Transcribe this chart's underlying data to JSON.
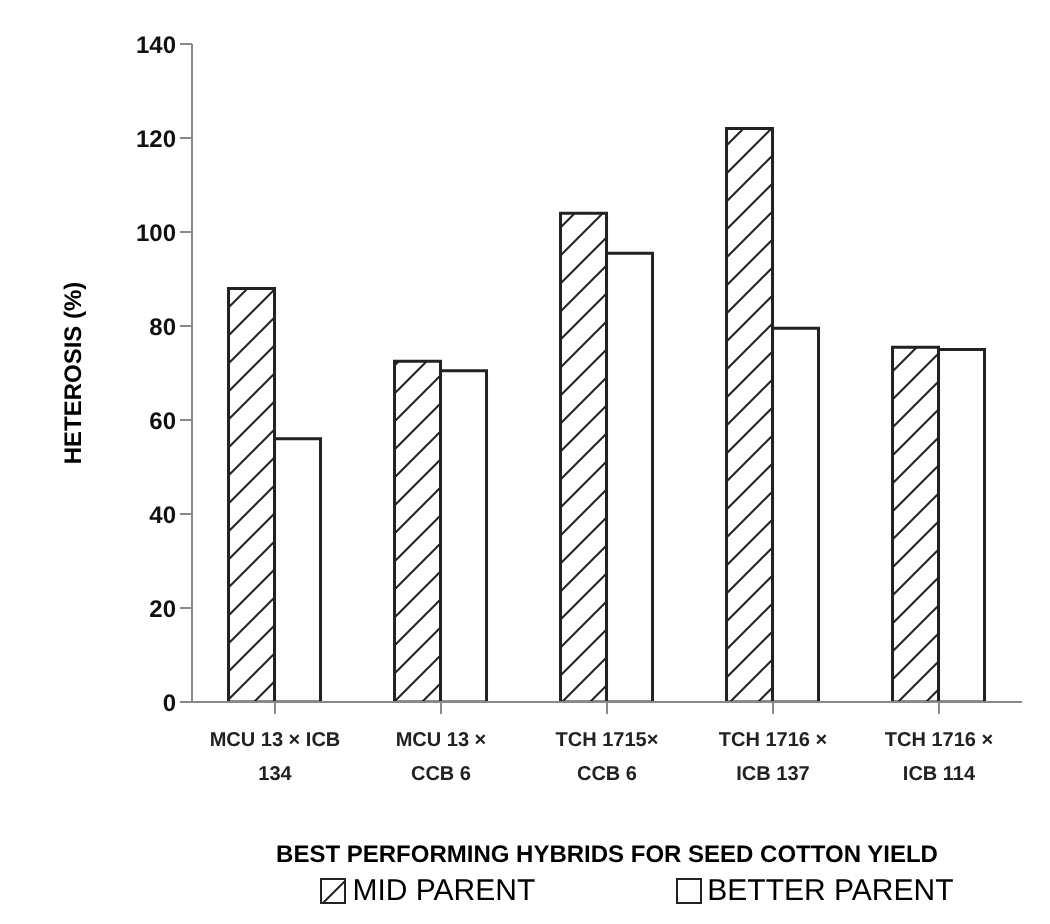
{
  "chart_data": {
    "type": "bar",
    "categories": [
      "MCU 13 × ICB\n134",
      "MCU 13 ×\nCCB 6",
      "TCH 1715×\nCCB 6",
      "TCH 1716 ×\nICB 137",
      "TCH 1716 ×\nICB 114"
    ],
    "series": [
      {
        "name": "MID PARENT",
        "color": "#222222",
        "values": [
          88,
          72.5,
          104,
          122,
          75.5
        ]
      },
      {
        "name": "BETTER PARENT",
        "color": "#222222",
        "values": [
          56,
          70.5,
          95.5,
          79.5,
          75
        ]
      }
    ],
    "xlabel": "BEST PERFORMING HYBRIDS FOR SEED COTTON YIELD",
    "ylabel": "HETEROSIS (%)",
    "ylim": [
      0,
      140
    ],
    "yticks": [
      0,
      20,
      40,
      60,
      80,
      100,
      120,
      140
    ],
    "grid": false,
    "legend": "bottom"
  }
}
